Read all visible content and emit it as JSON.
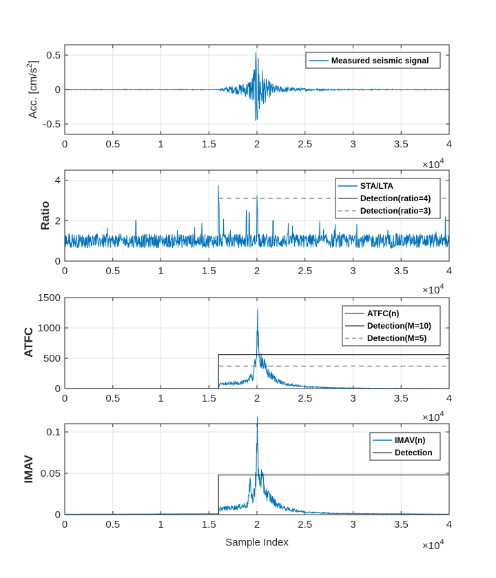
{
  "colors": {
    "signal": "#0072bd",
    "detect_solid": "#000000",
    "detect_dashed": "#7f7f7f",
    "grid": "#e3e3e3",
    "axis": "#262626"
  },
  "shared": {
    "xlabel": "Sample Index",
    "x_exponent_base": "×10",
    "x_exponent_power": "4"
  },
  "chart_data": [
    {
      "type": "line",
      "ylabel_prefix": "Acc. [cm/s",
      "ylabel_sup": "2",
      "ylabel_suffix": "]",
      "xlim": [
        0,
        40000
      ],
      "ylim": [
        -0.65,
        0.65
      ],
      "xticks": [
        0,
        5000,
        10000,
        15000,
        20000,
        25000,
        30000,
        35000,
        40000
      ],
      "xtick_labels": [
        "0",
        "0.5",
        "1",
        "1.5",
        "2",
        "2.5",
        "3",
        "3.5",
        "4"
      ],
      "yticks": [
        -0.5,
        0,
        0.5
      ],
      "ytick_labels": [
        "-0.5",
        "0",
        "0.5"
      ],
      "grid": true,
      "legend_position": "top-right",
      "series": [
        {
          "name": "Measured seismic signal",
          "style": "signal",
          "x": [
            0,
            16000,
            17000,
            18000,
            19000,
            19500,
            19800,
            20000,
            20100,
            20300,
            20600,
            21000,
            22000,
            24000,
            27000,
            30000,
            35000,
            40000
          ],
          "envelope": [
            0.006,
            0.006,
            0.05,
            0.07,
            0.12,
            0.22,
            0.45,
            0.65,
            0.6,
            0.48,
            0.3,
            0.15,
            0.06,
            0.025,
            0.012,
            0.008,
            0.006,
            0.006
          ]
        }
      ]
    },
    {
      "type": "line",
      "ylabel": "Ratio",
      "xlim": [
        0,
        40000
      ],
      "ylim": [
        0,
        4.5
      ],
      "xticks": [
        0,
        5000,
        10000,
        15000,
        20000,
        25000,
        30000,
        35000,
        40000
      ],
      "xtick_labels": [
        "0",
        "0.5",
        "1",
        "1.5",
        "2",
        "2.5",
        "3",
        "3.5",
        "4"
      ],
      "yticks": [
        0,
        2,
        4
      ],
      "ytick_labels": [
        "0",
        "2",
        "4"
      ],
      "grid": true,
      "legend_position": "top-right",
      "series": [
        {
          "name": "STA/LTA",
          "style": "signal",
          "baseline": 1.0,
          "noise": 0.35,
          "spikes": [
            [
              16000,
              3.75
            ],
            [
              16050,
              2.9
            ],
            [
              18900,
              2.5
            ],
            [
              19200,
              2.4
            ],
            [
              20000,
              3.25
            ],
            [
              20050,
              2.6
            ],
            [
              39600,
              2.2
            ],
            [
              7400,
              2.0
            ],
            [
              21700,
              2.0
            ]
          ]
        },
        {
          "name": "Detection(ratio=4)",
          "style": "detect_solid",
          "x_start": 16000,
          "level": null
        },
        {
          "name": "Detection(ratio=3)",
          "style": "detect_dashed",
          "x_start": 16000,
          "level": 3.1
        }
      ]
    },
    {
      "type": "line",
      "ylabel": "ATFC",
      "xlim": [
        0,
        40000
      ],
      "ylim": [
        0,
        1500
      ],
      "xticks": [
        0,
        5000,
        10000,
        15000,
        20000,
        25000,
        30000,
        35000,
        40000
      ],
      "xtick_labels": [
        "0",
        "0.5",
        "1",
        "1.5",
        "2",
        "2.5",
        "3",
        "3.5",
        "4"
      ],
      "yticks": [
        0,
        500,
        1000,
        1500
      ],
      "ytick_labels": [
        "0",
        "500",
        "1000",
        "1500"
      ],
      "grid": true,
      "legend_position": "top-right",
      "series": [
        {
          "name": "ATFC(n)",
          "style": "signal",
          "x": [
            0,
            16000,
            16100,
            17000,
            18000,
            19000,
            19300,
            19600,
            19900,
            20050,
            20200,
            20400,
            21000,
            22000,
            23000,
            25000,
            28000,
            32000,
            36000,
            40000
          ],
          "y": [
            2,
            3,
            70,
            80,
            90,
            110,
            230,
            160,
            500,
            1110,
            450,
            520,
            280,
            140,
            70,
            30,
            12,
            6,
            4,
            3
          ]
        },
        {
          "name": "Detection(M=10)",
          "style": "detect_solid",
          "x_start": 16000,
          "level": 560
        },
        {
          "name": "Detection(M=5)",
          "style": "detect_dashed",
          "x_start": 16000,
          "level": 370
        }
      ]
    },
    {
      "type": "line",
      "ylabel": "IMAV",
      "xlim": [
        0,
        40000
      ],
      "ylim": [
        0,
        0.11
      ],
      "xticks": [
        0,
        5000,
        10000,
        15000,
        20000,
        25000,
        30000,
        35000,
        40000
      ],
      "xtick_labels": [
        "0",
        "0.5",
        "1",
        "1.5",
        "2",
        "2.5",
        "3",
        "3.5",
        "4"
      ],
      "yticks": [
        0,
        0.05,
        0.1
      ],
      "ytick_labels": [
        "0",
        "0.05",
        "0.1"
      ],
      "grid": true,
      "legend_position": "top-right",
      "series": [
        {
          "name": "IMAV(n)",
          "style": "signal",
          "x": [
            0,
            16000,
            16100,
            17000,
            18000,
            19000,
            19300,
            19600,
            19900,
            20050,
            20200,
            20400,
            21000,
            22000,
            23000,
            25000,
            28000,
            32000,
            36000,
            40000
          ],
          "y": [
            0.0005,
            0.001,
            0.007,
            0.008,
            0.009,
            0.012,
            0.035,
            0.015,
            0.05,
            0.095,
            0.04,
            0.045,
            0.025,
            0.013,
            0.007,
            0.003,
            0.0015,
            0.001,
            0.0008,
            0.0005
          ]
        },
        {
          "name": "Detection",
          "style": "detect_solid",
          "x_start": 16000,
          "level": 0.048
        }
      ]
    }
  ]
}
